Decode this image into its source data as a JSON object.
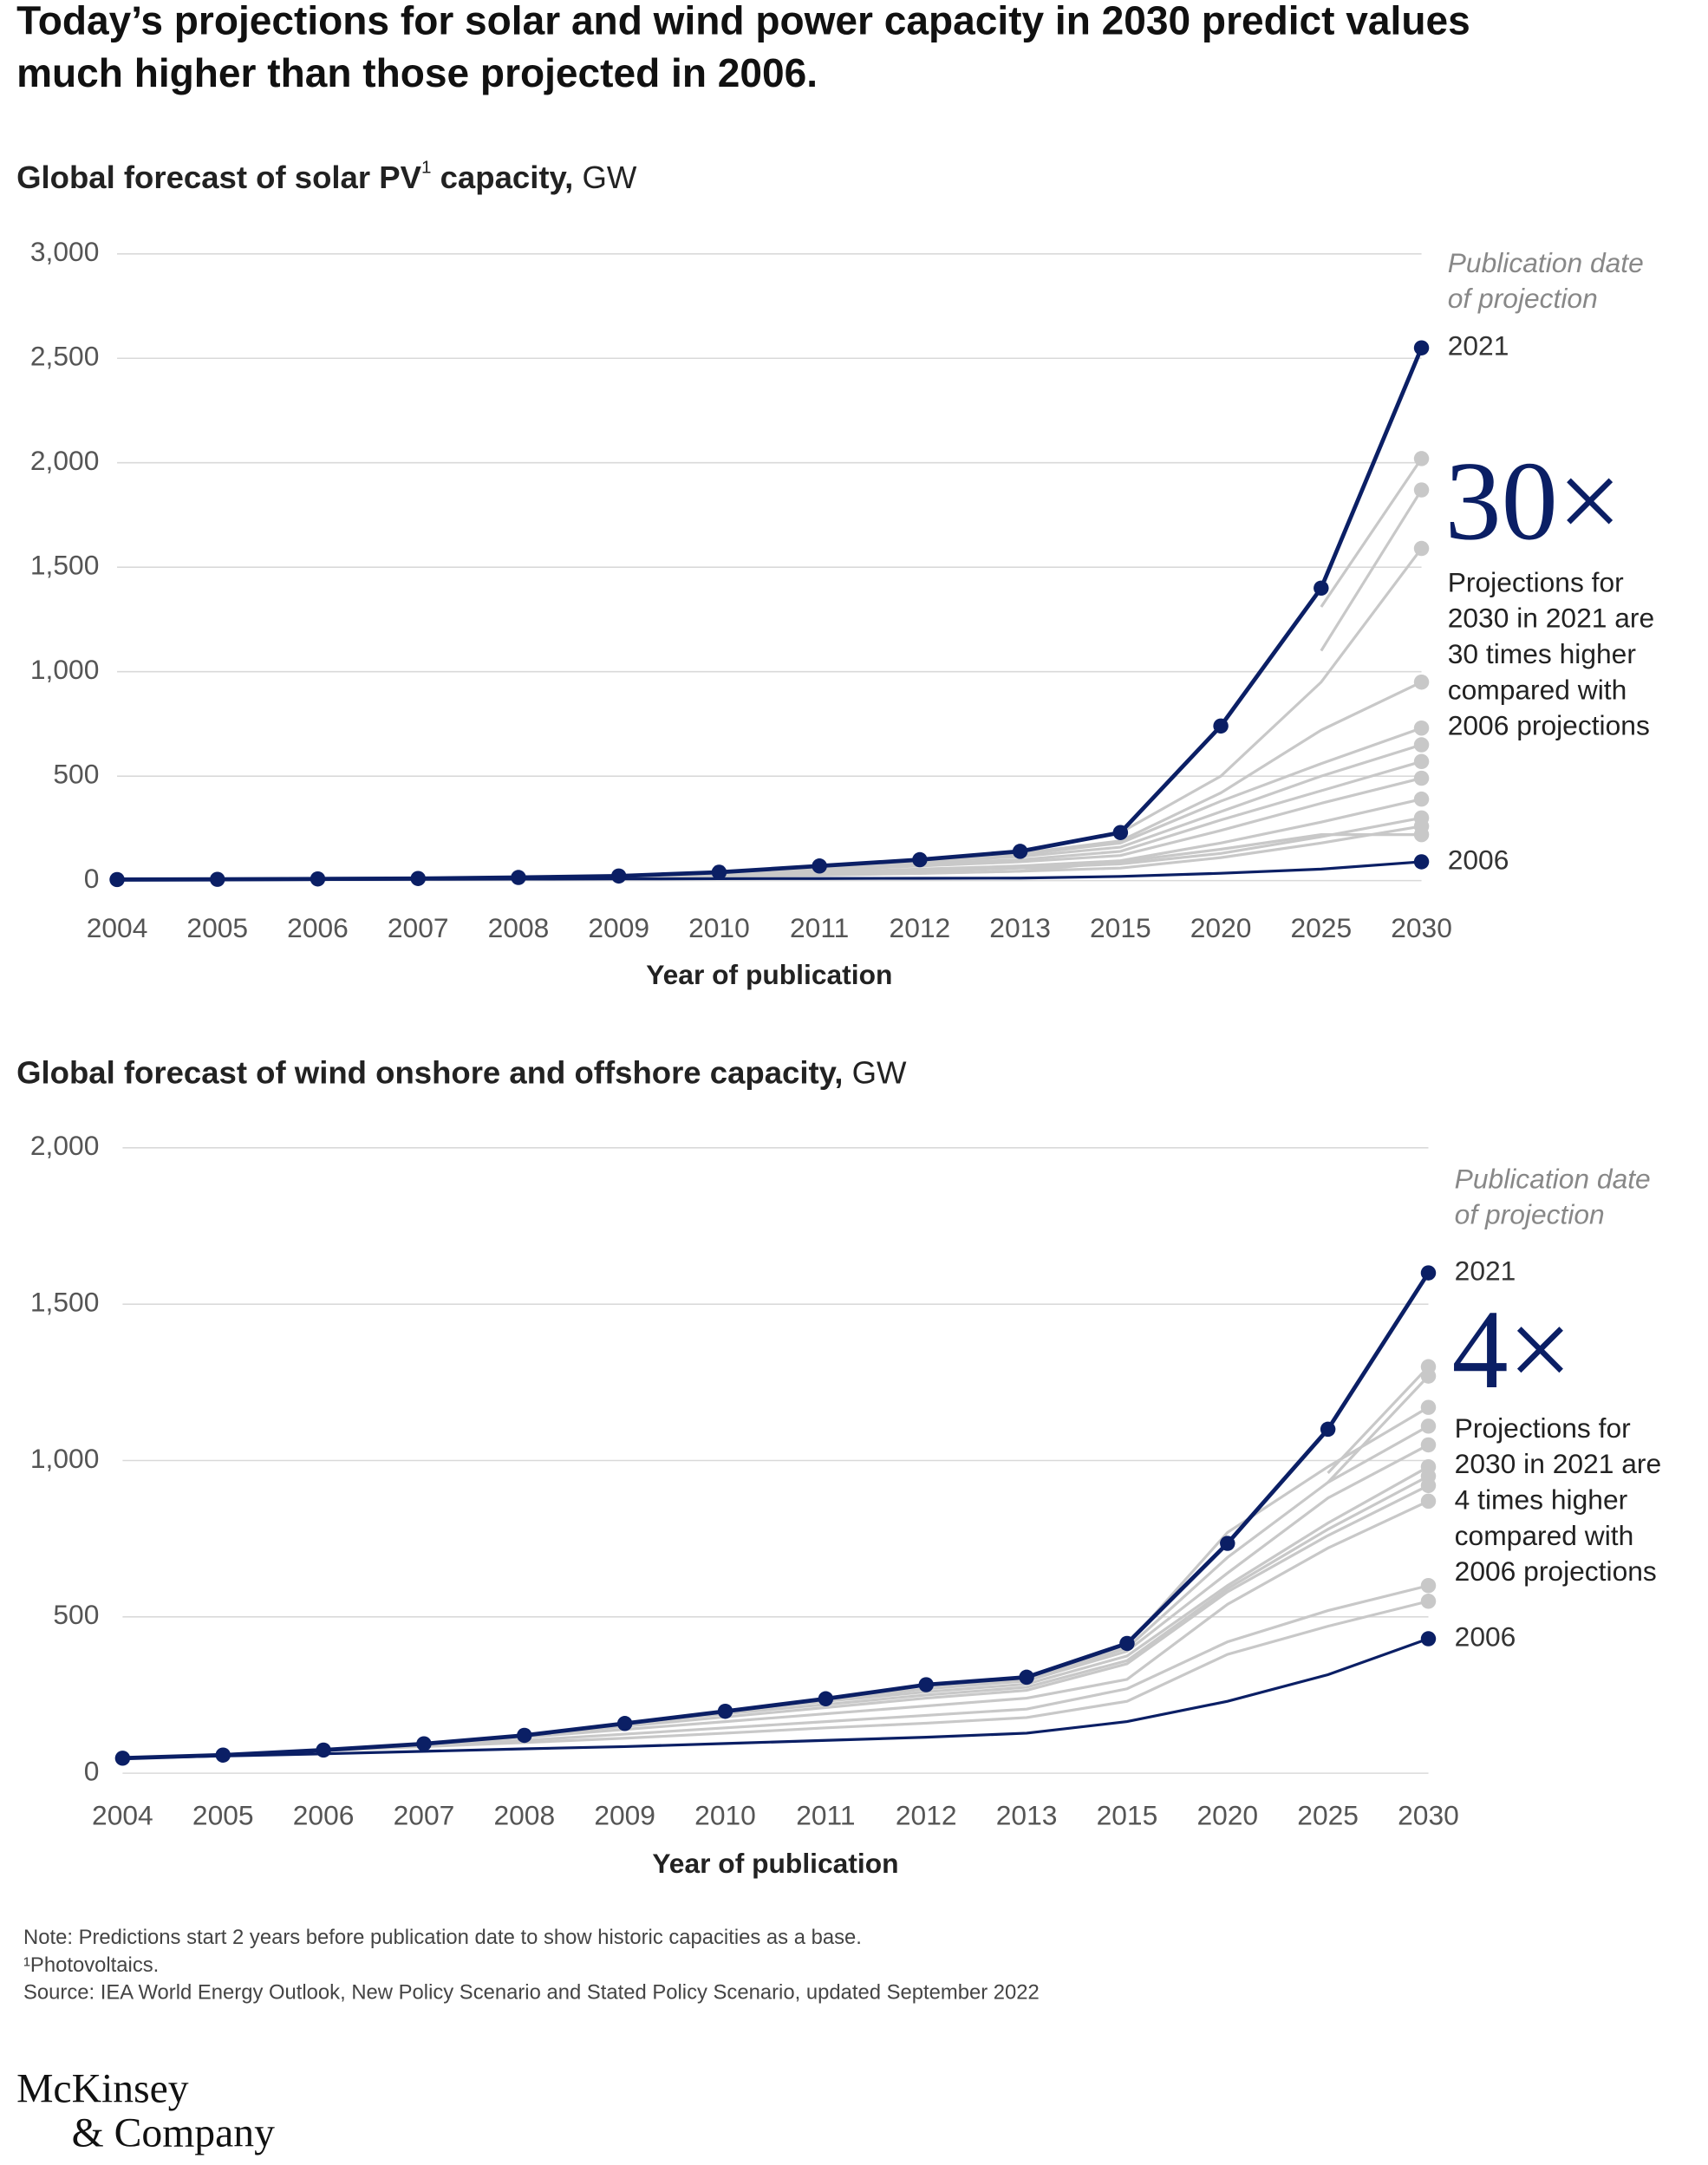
{
  "title": [
    "Today’s projections for solar and wind power capacity in 2030 predict values",
    "much higher than those projected in 2006."
  ],
  "chart_data": [
    {
      "type": "line",
      "title": "Global forecast of solar PV",
      "title_sup": "1",
      "title_rest": " capacity,",
      "unit": "GW",
      "x_label": "Year of publication",
      "categories": [
        "2004",
        "2005",
        "2006",
        "2007",
        "2008",
        "2009",
        "2010",
        "2011",
        "2012",
        "2013",
        "2015",
        "2020",
        "2025",
        "2030"
      ],
      "ylim": [
        0,
        3000
      ],
      "yticks": [
        0,
        500,
        {
          "value": 1000,
          "label": "1,000"
        },
        {
          "value": 1500,
          "label": "1,500"
        },
        {
          "value": 2000,
          "label": "2,000"
        },
        {
          "value": 2500,
          "label": "2,500"
        },
        {
          "value": 3000,
          "label": "3,000"
        }
      ],
      "grid": true,
      "series": [
        {
          "color": "#c8c8c8",
          "values": [
            null,
            null,
            null,
            null,
            null,
            null,
            null,
            null,
            null,
            null,
            null,
            null,
            1310,
            2020
          ]
        },
        {
          "color": "#c8c8c8",
          "values": [
            null,
            null,
            null,
            null,
            null,
            null,
            null,
            null,
            null,
            null,
            null,
            null,
            1100,
            1870
          ]
        },
        {
          "color": "#c8c8c8",
          "values": [
            null,
            null,
            null,
            null,
            null,
            null,
            null,
            null,
            null,
            140,
            230,
            500,
            950,
            1590
          ]
        },
        {
          "color": "#c8c8c8",
          "values": [
            null,
            null,
            null,
            null,
            null,
            null,
            null,
            null,
            100,
            130,
            190,
            420,
            720,
            950
          ]
        },
        {
          "color": "#c8c8c8",
          "values": [
            null,
            null,
            null,
            null,
            null,
            null,
            null,
            70,
            95,
            125,
            180,
            380,
            560,
            730
          ]
        },
        {
          "color": "#c8c8c8",
          "values": [
            null,
            null,
            null,
            null,
            null,
            null,
            40,
            65,
            90,
            115,
            160,
            330,
            500,
            650
          ]
        },
        {
          "color": "#c8c8c8",
          "values": [
            null,
            null,
            null,
            null,
            null,
            22,
            38,
            60,
            80,
            100,
            140,
            290,
            430,
            570
          ]
        },
        {
          "color": "#c8c8c8",
          "values": [
            null,
            null,
            null,
            null,
            15,
            20,
            32,
            50,
            70,
            90,
            120,
            240,
            370,
            490
          ]
        },
        {
          "color": "#c8c8c8",
          "values": [
            null,
            null,
            null,
            10,
            14,
            19,
            28,
            40,
            55,
            70,
            95,
            180,
            280,
            390
          ]
        },
        {
          "color": "#c8c8c8",
          "values": [
            null,
            null,
            8,
            10,
            13,
            17,
            24,
            33,
            45,
            60,
            80,
            130,
            210,
            300
          ]
        },
        {
          "color": "#c8c8c8",
          "values": [
            null,
            null,
            null,
            10,
            13,
            17,
            22,
            28,
            35,
            45,
            60,
            110,
            180,
            260
          ]
        },
        {
          "color": "#c8c8c8",
          "values": [
            null,
            null,
            8,
            10,
            12,
            15,
            20,
            26,
            34,
            45,
            90,
            150,
            220,
            220
          ]
        },
        {
          "name": "2006",
          "color": "#0b1f65",
          "values": [
            3,
            4,
            5,
            6,
            7,
            8,
            9,
            10,
            11,
            12,
            20,
            35,
            55,
            90
          ],
          "markers": "end"
        },
        {
          "name": "2021",
          "color": "#0b1f65",
          "values": [
            5,
            6,
            8,
            10,
            15,
            22,
            40,
            70,
            100,
            140,
            230,
            740,
            1400,
            2550
          ],
          "markers": "all"
        }
      ],
      "annotation": {
        "header": [
          "Publication date",
          "of projection"
        ],
        "multiplier": "30×",
        "text": [
          "Projections for",
          "2030 in 2021 are",
          "30 times higher",
          "compared with",
          "2006 projections"
        ]
      }
    },
    {
      "type": "line",
      "title": "Global forecast of wind onshore and offshore capacity,",
      "unit": "GW",
      "x_label": "Year of publication",
      "categories": [
        "2004",
        "2005",
        "2006",
        "2007",
        "2008",
        "2009",
        "2010",
        "2011",
        "2012",
        "2013",
        "2015",
        "2020",
        "2025",
        "2030"
      ],
      "ylim": [
        0,
        2000
      ],
      "yticks": [
        0,
        500,
        {
          "value": 1000,
          "label": "1,000"
        },
        {
          "value": 1500,
          "label": "1,500"
        },
        {
          "value": 2000,
          "label": "2,000"
        }
      ],
      "grid": true,
      "series": [
        {
          "color": "#c8c8c8",
          "values": [
            null,
            null,
            null,
            null,
            null,
            null,
            null,
            null,
            null,
            null,
            null,
            null,
            960,
            1300
          ]
        },
        {
          "color": "#c8c8c8",
          "values": [
            null,
            null,
            null,
            null,
            null,
            null,
            null,
            null,
            null,
            null,
            null,
            null,
            930,
            1270
          ]
        },
        {
          "color": "#c8c8c8",
          "values": [
            null,
            null,
            null,
            null,
            null,
            null,
            null,
            null,
            null,
            305,
            410,
            770,
            980,
            1170
          ]
        },
        {
          "color": "#c8c8c8",
          "values": [
            null,
            null,
            null,
            null,
            null,
            null,
            null,
            null,
            280,
            300,
            400,
            690,
            930,
            1110
          ]
        },
        {
          "color": "#c8c8c8",
          "values": [
            null,
            null,
            null,
            null,
            null,
            null,
            null,
            235,
            270,
            295,
            390,
            640,
            880,
            1050
          ]
        },
        {
          "color": "#c8c8c8",
          "values": [
            null,
            null,
            null,
            null,
            null,
            null,
            198,
            230,
            260,
            285,
            375,
            600,
            800,
            980
          ]
        },
        {
          "color": "#c8c8c8",
          "values": [
            null,
            null,
            null,
            null,
            null,
            158,
            190,
            220,
            250,
            275,
            360,
            590,
            780,
            950
          ]
        },
        {
          "color": "#c8c8c8",
          "values": [
            null,
            null,
            null,
            null,
            121,
            150,
            180,
            210,
            240,
            265,
            350,
            580,
            760,
            920
          ]
        },
        {
          "color": "#c8c8c8",
          "values": [
            null,
            null,
            null,
            94,
            115,
            140,
            165,
            190,
            215,
            240,
            300,
            540,
            720,
            870
          ]
        },
        {
          "color": "#c8c8c8",
          "values": [
            null,
            null,
            74,
            90,
            105,
            125,
            145,
            165,
            185,
            205,
            270,
            420,
            520,
            600
          ]
        },
        {
          "color": "#c8c8c8",
          "values": [
            null,
            null,
            72,
            85,
            98,
            112,
            128,
            145,
            160,
            178,
            230,
            380,
            470,
            550
          ]
        },
        {
          "name": "2006",
          "color": "#0b1f65",
          "values": [
            48,
            55,
            62,
            70,
            78,
            85,
            95,
            105,
            115,
            128,
            165,
            230,
            315,
            430
          ],
          "markers": "end"
        },
        {
          "name": "2021",
          "color": "#0b1f65",
          "values": [
            48,
            58,
            74,
            94,
            121,
            159,
            198,
            238,
            283,
            307,
            415,
            735,
            1100,
            1600
          ],
          "markers": "all"
        }
      ],
      "annotation": {
        "header": [
          "Publication date",
          "of projection"
        ],
        "multiplier": "4×",
        "text": [
          "Projections for",
          "2030 in 2021 are",
          "4 times higher",
          "compared with",
          "2006 projections"
        ]
      }
    }
  ],
  "notes": [
    "Note: Predictions start 2 years before publication date to show historic capacities as a base.",
    "¹Photovoltaics.",
    "Source: IEA World Energy Outlook, New Policy Scenario and Stated Policy Scenario, updated September 2022"
  ],
  "logo": [
    "McKinsey",
    "& Company"
  ]
}
